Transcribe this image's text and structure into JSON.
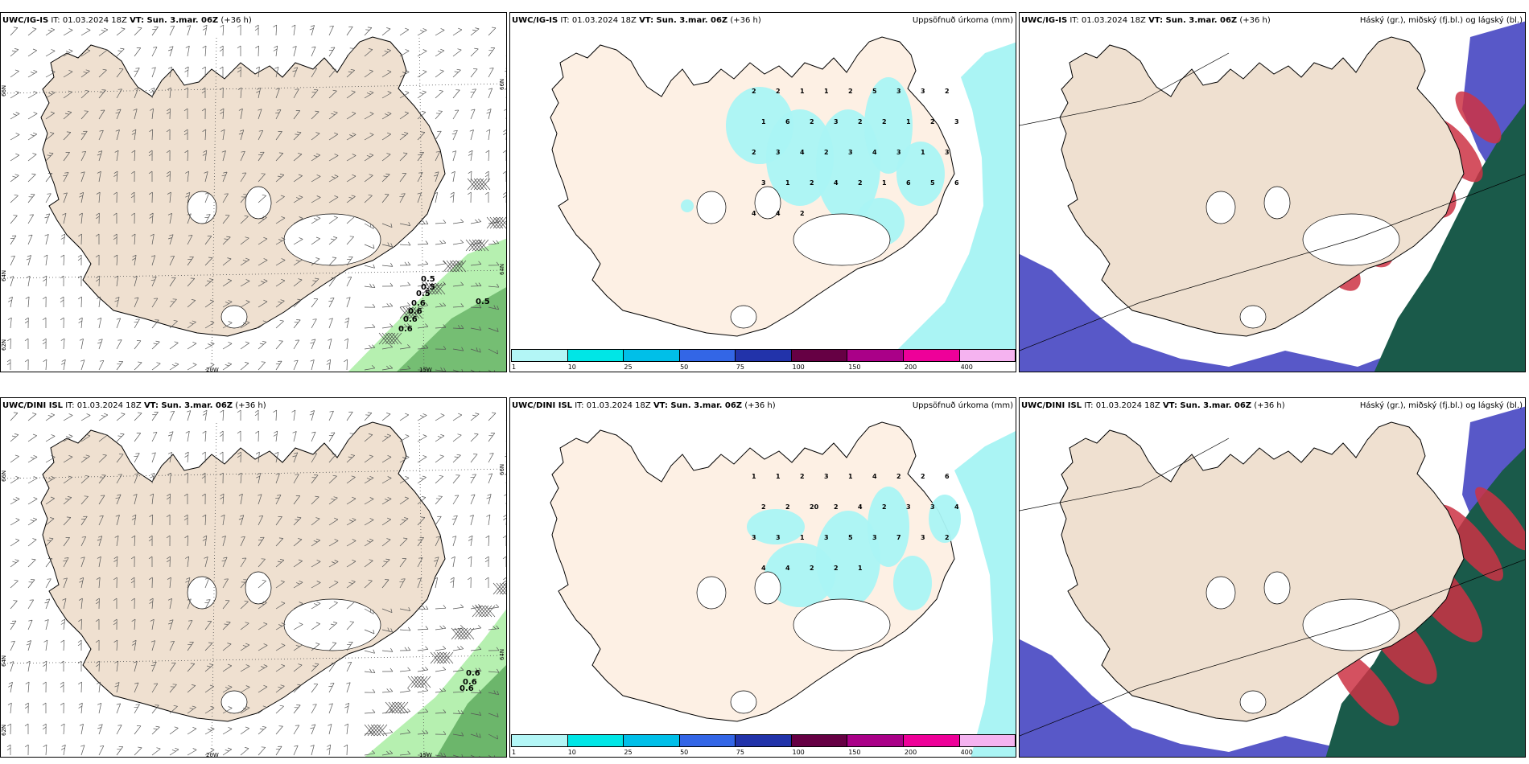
{
  "panels": {
    "p1": {
      "model": "UWC/IG-IS",
      "it": "IT: 01.03.2024 18Z",
      "vt": "VT: Sun. 3.mar. 06Z",
      "lead": "(+36 h)"
    },
    "p2": {
      "model": "UWC/IG-IS",
      "it": "IT: 01.03.2024 18Z",
      "vt": "VT: Sun. 3.mar. 06Z",
      "lead": "(+36 h)",
      "right_label": "Uppsöfnuð úrkoma (mm)"
    },
    "p3": {
      "model": "UWC/IG-IS",
      "it": "IT: 01.03.2024 18Z",
      "vt": "VT: Sun. 3.mar. 06Z",
      "lead": "(+36 h)",
      "right_label": "Háský (gr.), miðský (fj.bl.) og lágský (bl.)"
    },
    "p4": {
      "model": "UWC/DINI ISL",
      "it": "IT: 01.03.2024 18Z",
      "vt": "VT: Sun. 3.mar. 06Z",
      "lead": "(+36 h)"
    },
    "p5": {
      "model": "UWC/DINI ISL",
      "it": "IT: 01.03.2024 18Z",
      "vt": "VT: Sun. 3.mar. 06Z",
      "lead": "(+36 h)",
      "right_label": "Uppsöfnuð úrkoma (mm)"
    },
    "p6": {
      "model": "UWC/DINI ISL",
      "it": "IT: 01.03.2024 18Z",
      "vt": "VT: Sun. 3.mar. 06Z",
      "lead": "(+36 h)",
      "right_label": "Háský (gr.), miðský (fj.bl.) og lágský (bl.)"
    }
  },
  "grid_labels": {
    "lat_66": "66N",
    "lat_64": "64N",
    "lat_62": "62N",
    "lon_20": "20W",
    "lon_15": "15W"
  },
  "precip_colorbar": {
    "ticks": [
      "1",
      "10",
      "25",
      "50",
      "75",
      "100",
      "150",
      "200",
      "400"
    ],
    "colors": [
      "#b3f6f6",
      "#00e6e6",
      "#00bfe8",
      "#3366e6",
      "#2233aa",
      "#660044",
      "#aa0088",
      "#ee0099",
      "#f5b3f0"
    ]
  },
  "colors": {
    "land": "#efe0d0",
    "land_precip": "#fdf0e4",
    "precip_light": "#aaf4f4",
    "snow": "#ffffff",
    "fog_green": "#b6f0b0",
    "fog_green_dark": "#5aa85a",
    "cloud_low": "#5858c8",
    "cloud_mid": "#1a5a4a",
    "cloud_high": "#cc3344"
  },
  "precip_values": {
    "p2": [
      "2",
      "2",
      "1",
      "1",
      "2",
      "5",
      "3",
      "3",
      "2",
      "1",
      "6",
      "2",
      "3",
      "2",
      "2",
      "1",
      "2",
      "3",
      "2",
      "3",
      "4",
      "2",
      "3",
      "4",
      "3",
      "1",
      "3",
      "3",
      "1",
      "2",
      "4",
      "2",
      "1",
      "6",
      "5",
      "6",
      "4",
      "4",
      "2"
    ],
    "p5": [
      "1",
      "1",
      "2",
      "3",
      "1",
      "4",
      "2",
      "2",
      "6",
      "2",
      "2",
      "20",
      "2",
      "4",
      "2",
      "3",
      "3",
      "4",
      "3",
      "3",
      "1",
      "3",
      "5",
      "3",
      "7",
      "3",
      "2",
      "4",
      "4",
      "2",
      "2",
      "1"
    ]
  },
  "fog_values": {
    "p1": [
      "0.5",
      "0.5",
      "0.5",
      "0.6",
      "0.6",
      "0.6",
      "0.6"
    ],
    "p4": [
      "0.6",
      "0.6",
      "0.6"
    ]
  }
}
